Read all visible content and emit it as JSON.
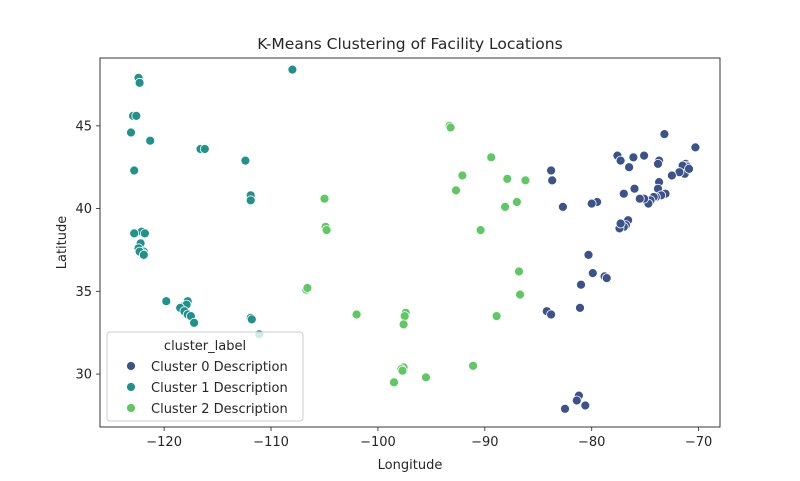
{
  "chart_data": {
    "type": "scatter",
    "title": "K-Means Clustering of Facility Locations",
    "xlabel": "Longitude",
    "ylabel": "Latitude",
    "xlim": [
      -126,
      -68
    ],
    "ylim": [
      26.8,
      49.1
    ],
    "xticks": [
      -120,
      -110,
      -100,
      -90,
      -80,
      -70
    ],
    "yticks": [
      30,
      35,
      40,
      45
    ],
    "grid": false,
    "legend": {
      "title": "cluster_label",
      "placement": "lower-left"
    },
    "series": [
      {
        "name": "Cluster 0 Description",
        "color": "#3b528b",
        "points": [
          [
            -73.2,
            44.5
          ],
          [
            -70.3,
            43.7
          ],
          [
            -71.2,
            42.7
          ],
          [
            -71.1,
            42.6
          ],
          [
            -71.0,
            42.5
          ],
          [
            -71.4,
            42.3
          ],
          [
            -71.5,
            42.6
          ],
          [
            -71.3,
            42.1
          ],
          [
            -71.8,
            42.2
          ],
          [
            -70.9,
            42.4
          ],
          [
            -72.5,
            42.0
          ],
          [
            -73.7,
            42.9
          ],
          [
            -73.8,
            42.7
          ],
          [
            -75.1,
            43.2
          ],
          [
            -76.1,
            43.1
          ],
          [
            -77.6,
            43.2
          ],
          [
            -77.3,
            42.9
          ],
          [
            -76.5,
            42.5
          ],
          [
            -73.7,
            41.6
          ],
          [
            -73.8,
            41.2
          ],
          [
            -73.1,
            40.9
          ],
          [
            -73.5,
            40.8
          ],
          [
            -74.0,
            40.7
          ],
          [
            -74.2,
            40.7
          ],
          [
            -74.5,
            40.5
          ],
          [
            -74.7,
            40.3
          ],
          [
            -75.1,
            40.6
          ],
          [
            -75.5,
            40.6
          ],
          [
            -76.0,
            41.2
          ],
          [
            -77.0,
            40.9
          ],
          [
            -79.5,
            40.4
          ],
          [
            -80.0,
            40.3
          ],
          [
            -82.7,
            40.1
          ],
          [
            -83.8,
            42.3
          ],
          [
            -83.7,
            41.7
          ],
          [
            -76.6,
            39.3
          ],
          [
            -76.8,
            39.0
          ],
          [
            -77.0,
            38.9
          ],
          [
            -77.4,
            38.8
          ],
          [
            -77.3,
            39.1
          ],
          [
            -80.3,
            37.2
          ],
          [
            -79.9,
            36.1
          ],
          [
            -78.8,
            35.9
          ],
          [
            -78.6,
            35.8
          ],
          [
            -81.0,
            35.4
          ],
          [
            -81.1,
            34.0
          ],
          [
            -84.2,
            33.8
          ],
          [
            -83.8,
            33.6
          ],
          [
            -81.2,
            28.7
          ],
          [
            -81.4,
            28.4
          ],
          [
            -80.6,
            28.1
          ],
          [
            -82.5,
            27.9
          ]
        ]
      },
      {
        "name": "Cluster 1 Description",
        "color": "#21918c",
        "points": [
          [
            -108.0,
            48.4
          ],
          [
            -122.4,
            47.9
          ],
          [
            -122.3,
            47.6
          ],
          [
            -122.9,
            45.6
          ],
          [
            -122.6,
            45.6
          ],
          [
            -123.1,
            44.6
          ],
          [
            -121.3,
            44.1
          ],
          [
            -116.6,
            43.6
          ],
          [
            -116.2,
            43.6
          ],
          [
            -112.4,
            42.9
          ],
          [
            -122.8,
            42.3
          ],
          [
            -111.9,
            40.8
          ],
          [
            -111.9,
            40.5
          ],
          [
            -122.1,
            38.6
          ],
          [
            -121.8,
            38.5
          ],
          [
            -122.8,
            38.5
          ],
          [
            -122.2,
            37.9
          ],
          [
            -122.4,
            37.6
          ],
          [
            -121.9,
            37.4
          ],
          [
            -122.0,
            37.3
          ],
          [
            -122.3,
            37.4
          ],
          [
            -121.9,
            37.2
          ],
          [
            -117.8,
            34.4
          ],
          [
            -118.2,
            34.1
          ],
          [
            -117.9,
            34.2
          ],
          [
            -119.8,
            34.4
          ],
          [
            -118.5,
            34.0
          ],
          [
            -118.1,
            33.8
          ],
          [
            -117.8,
            33.6
          ],
          [
            -117.5,
            33.5
          ],
          [
            -117.2,
            33.1
          ],
          [
            -111.9,
            33.4
          ],
          [
            -111.8,
            33.3
          ],
          [
            -111.1,
            32.4
          ]
        ]
      },
      {
        "name": "Cluster 2 Description",
        "color": "#5ec962",
        "points": [
          [
            -93.3,
            45.0
          ],
          [
            -93.2,
            44.9
          ],
          [
            -92.1,
            42.0
          ],
          [
            -89.4,
            43.1
          ],
          [
            -87.9,
            41.8
          ],
          [
            -86.2,
            41.7
          ],
          [
            -92.7,
            41.1
          ],
          [
            -88.1,
            40.1
          ],
          [
            -87.0,
            40.4
          ],
          [
            -90.4,
            38.7
          ],
          [
            -105.0,
            40.6
          ],
          [
            -104.9,
            38.9
          ],
          [
            -104.8,
            38.7
          ],
          [
            -106.7,
            35.1
          ],
          [
            -106.6,
            35.2
          ],
          [
            -86.8,
            36.2
          ],
          [
            -86.7,
            34.8
          ],
          [
            -97.4,
            33.7
          ],
          [
            -97.5,
            33.5
          ],
          [
            -97.6,
            33.0
          ],
          [
            -102.0,
            33.6
          ],
          [
            -88.9,
            33.5
          ],
          [
            -97.6,
            30.4
          ],
          [
            -97.8,
            30.3
          ],
          [
            -98.5,
            29.5
          ],
          [
            -95.5,
            29.8
          ],
          [
            -91.1,
            30.5
          ],
          [
            -97.7,
            30.2
          ]
        ]
      }
    ]
  }
}
